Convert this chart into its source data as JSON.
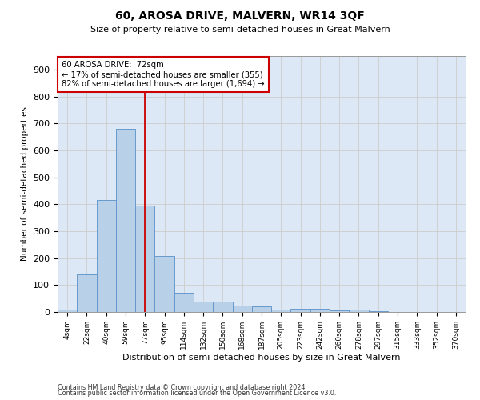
{
  "title": "60, AROSA DRIVE, MALVERN, WR14 3QF",
  "subtitle": "Size of property relative to semi-detached houses in Great Malvern",
  "xlabel": "Distribution of semi-detached houses by size in Great Malvern",
  "ylabel": "Number of semi-detached properties",
  "categories": [
    "4sqm",
    "22sqm",
    "40sqm",
    "59sqm",
    "77sqm",
    "95sqm",
    "114sqm",
    "132sqm",
    "150sqm",
    "168sqm",
    "187sqm",
    "205sqm",
    "223sqm",
    "242sqm",
    "260sqm",
    "278sqm",
    "297sqm",
    "315sqm",
    "333sqm",
    "352sqm",
    "370sqm"
  ],
  "values": [
    8,
    140,
    415,
    680,
    395,
    207,
    72,
    38,
    38,
    25,
    20,
    10,
    11,
    11,
    5,
    10,
    2,
    0,
    0,
    0,
    0
  ],
  "bar_color": "#b8d0e8",
  "bar_edge_color": "#6699cc",
  "property_line_x": 4.0,
  "annotation_text_line1": "60 AROSA DRIVE:  72sqm",
  "annotation_text_line2": "← 17% of semi-detached houses are smaller (355)",
  "annotation_text_line3": "82% of semi-detached houses are larger (1,694) →",
  "annotation_box_color": "#ffffff",
  "annotation_box_edge_color": "#cc0000",
  "vline_color": "#cc0000",
  "ylim": [
    0,
    950
  ],
  "yticks": [
    0,
    100,
    200,
    300,
    400,
    500,
    600,
    700,
    800,
    900
  ],
  "grid_color": "#cccccc",
  "bg_color": "#dce8f5",
  "footnote1": "Contains HM Land Registry data © Crown copyright and database right 2024.",
  "footnote2": "Contains public sector information licensed under the Open Government Licence v3.0."
}
